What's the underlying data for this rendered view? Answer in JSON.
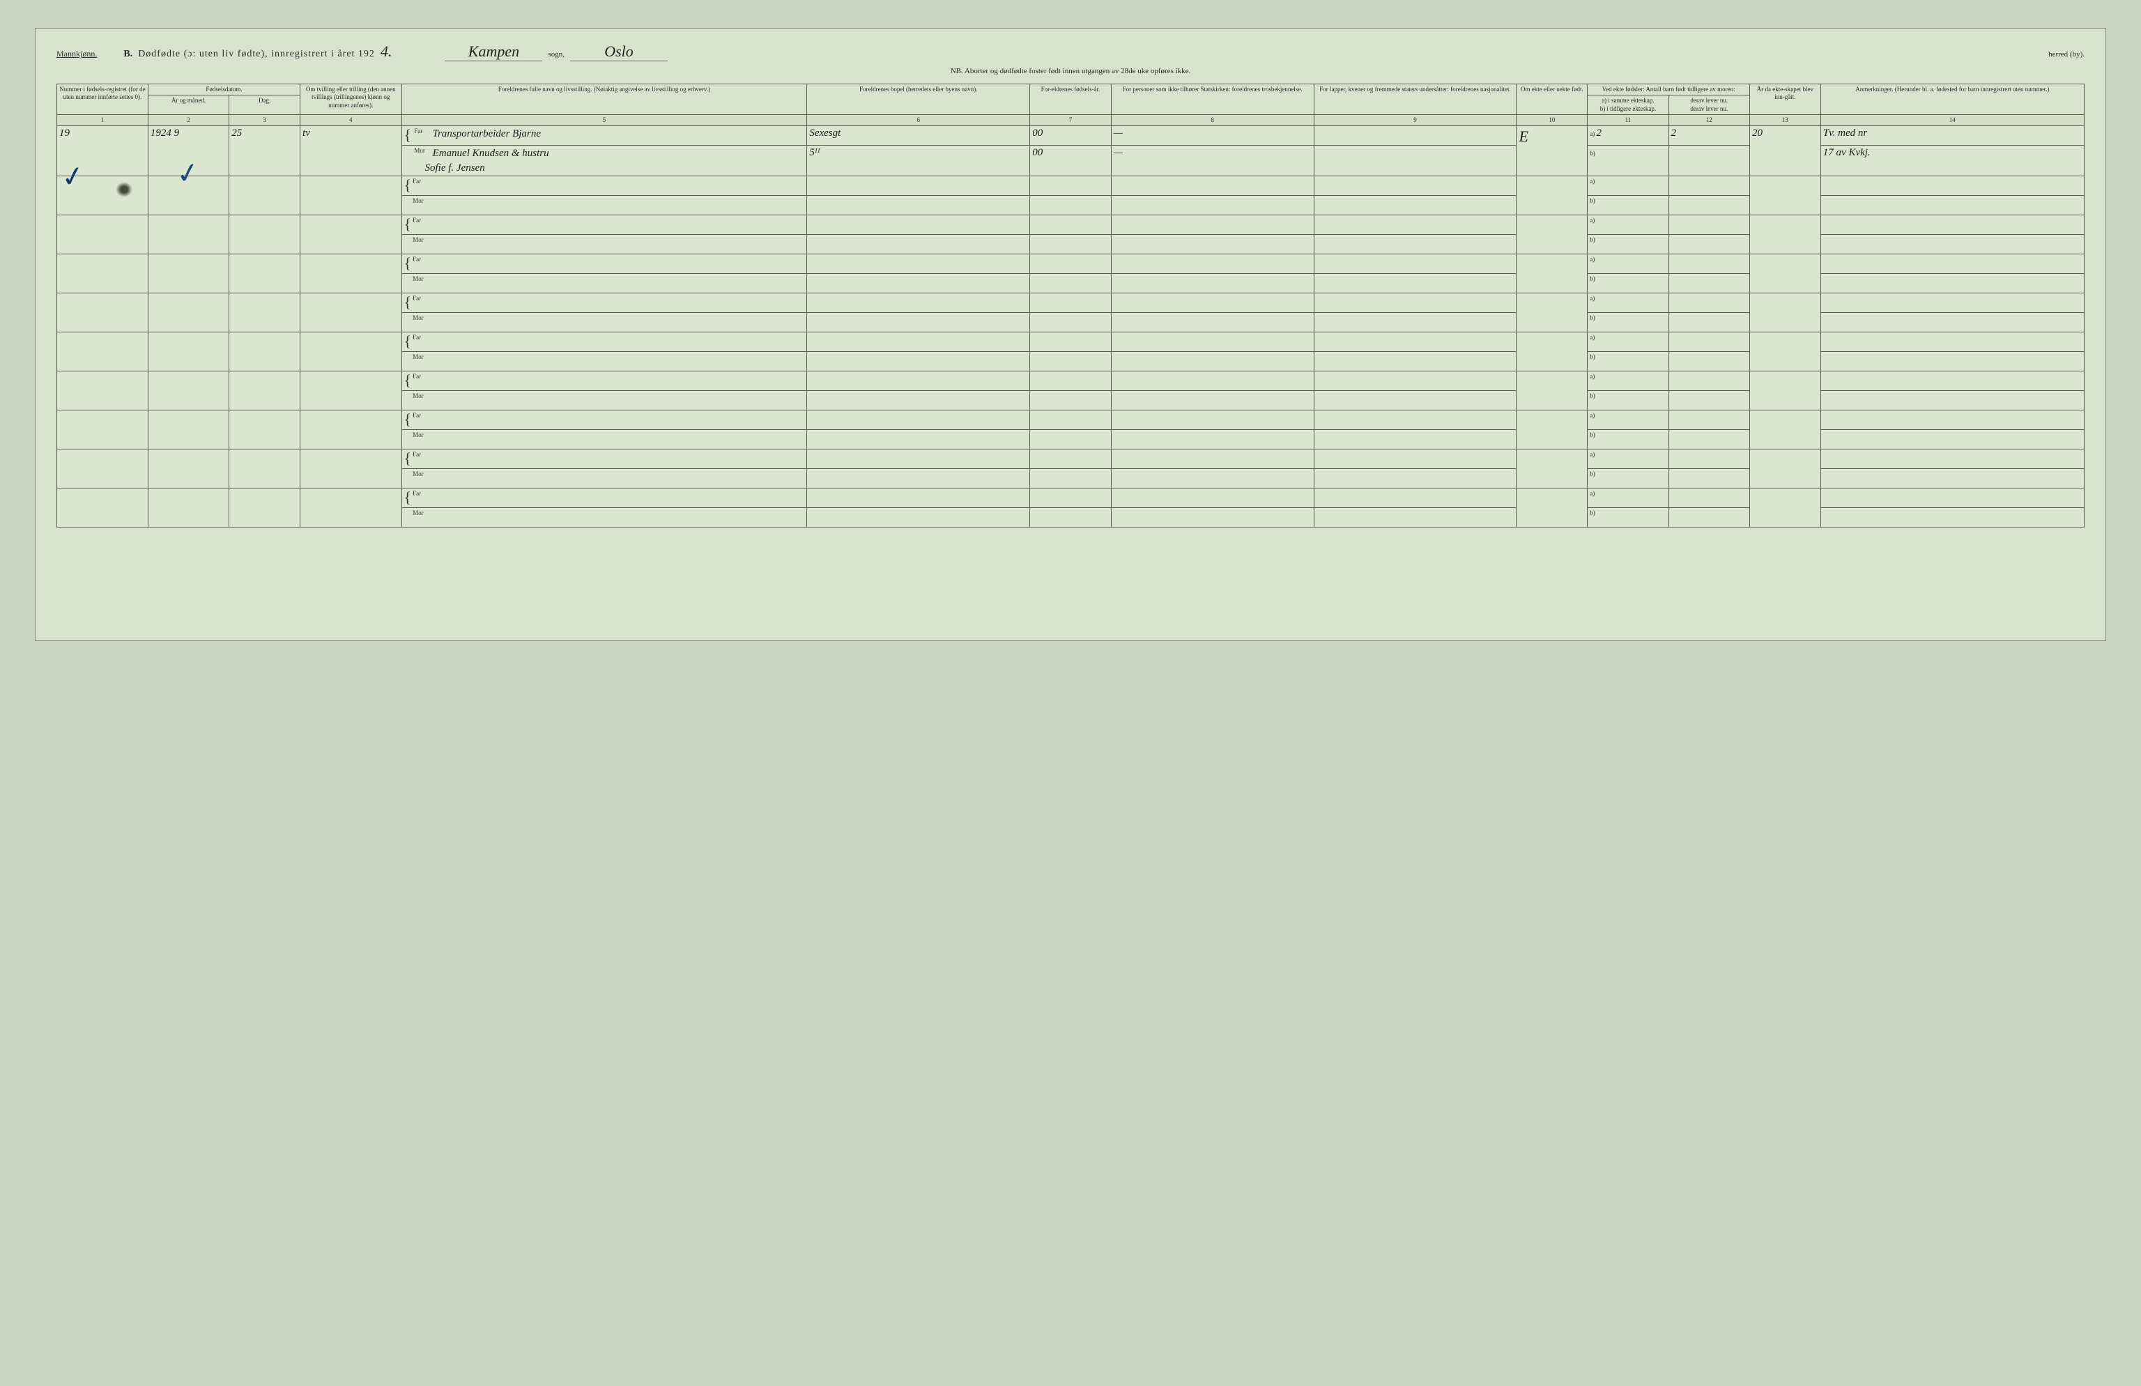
{
  "background_color": "#d8e2cc",
  "page_border_color": "#8a8a7a",
  "grid_color": "#5a5a4a",
  "text_color": "#2a2a2a",
  "handwriting_color": "#1a1a1a",
  "checkmark_color": "#0a3a6a",
  "font_body_pt": 11,
  "font_header_pt": 14,
  "font_handwriting_pt": 22,
  "top": {
    "gender_label": "Mannkjønn.",
    "section_letter": "B.",
    "section_title": "Dødfødte (ɔ: uten liv fødte), innregistrert i året 192",
    "year_suffix_hw": "4.",
    "sogn_value_hw": "Kampen",
    "sogn_label": "sogn,",
    "herred_value_hw": "Oslo",
    "herred_label": "herred (by).",
    "nb_line": "NB. Aborter og dødfødte foster født innen utgangen av 28de uke opføres ikke."
  },
  "columns": {
    "widths_pct": [
      4.5,
      4,
      3.5,
      5,
      20,
      11,
      4,
      10,
      10,
      3.5,
      4,
      4,
      3.5,
      13
    ],
    "headers": {
      "c1": "Nummer i fødsels-registret (for de uten nummer innførte settes 0).",
      "c2_group": "Fødselsdatum.",
      "c2a": "År og måned.",
      "c2b": "Dag.",
      "c3": "Om tvilling eller trilling (den annen tvillings (trillingenes) kjønn og nummer anføres).",
      "c4": "Foreldrenes fulle navn og livsstilling. (Nøiaktig angivelse av livsstilling og erhverv.)",
      "c5": "Foreldrenes bopel (herredets eller byens navn).",
      "c6": "For-eldrenes fødsels-år.",
      "c7": "For personer som ikke tilhører Statskirken: foreldrenes trosbekjennelse.",
      "c8": "For lapper, kvener og fremmede staters undersåtter: foreldrenes nasjonalitet.",
      "c9": "Om ekte eller uekte født.",
      "c10_group": "Ved ekte fødsler: Antall barn født tidligere av moren:",
      "c10a": "a) i samme ekteskap.",
      "c10b": "b) i tidligere ekteskap.",
      "c10c": "derav lever nu.",
      "c11": "År da ekte-skapet blev inn-gått.",
      "c12": "Anmerkninger. (Herunder bl. a. fødested for barn innregistrert uten nummer.)"
    },
    "numbers": [
      "1",
      "2",
      "3",
      "4",
      "5",
      "6",
      "7",
      "8",
      "9",
      "10",
      "11",
      "12",
      "13",
      "14"
    ]
  },
  "row_labels": {
    "far": "Far",
    "mor": "Mor",
    "a": "a)",
    "b": "b)"
  },
  "entry": {
    "reg_no_hw": "19",
    "year_month_hw": "1924  9",
    "day_hw": "25",
    "twin_hw": "tv",
    "far_line_hw": "Transportarbeider Bjarne",
    "mor_line1_hw": "Emanuel Knudsen & hustru",
    "mor_line2_hw": "Sofie f. Jensen",
    "bopel_far_hw": "Sexesgt",
    "bopel_mor_hw": "5ᴵᴵ",
    "far_birthyr_hw": "00",
    "mor_birthyr_hw": "00",
    "col8_far_hw": "—",
    "col8_mor_hw": "—",
    "col9_far_hw": "",
    "col9_mor_hw": "",
    "ekte_hw": "E",
    "c11a_hw": "2",
    "c12a_hw": "2",
    "c11b_hw": "",
    "c12b_hw": "",
    "c13_hw": "20",
    "anm_line1_hw": "Tv. med nr",
    "anm_line2_hw": "17 av Kvkj."
  },
  "empty_rows": 9
}
